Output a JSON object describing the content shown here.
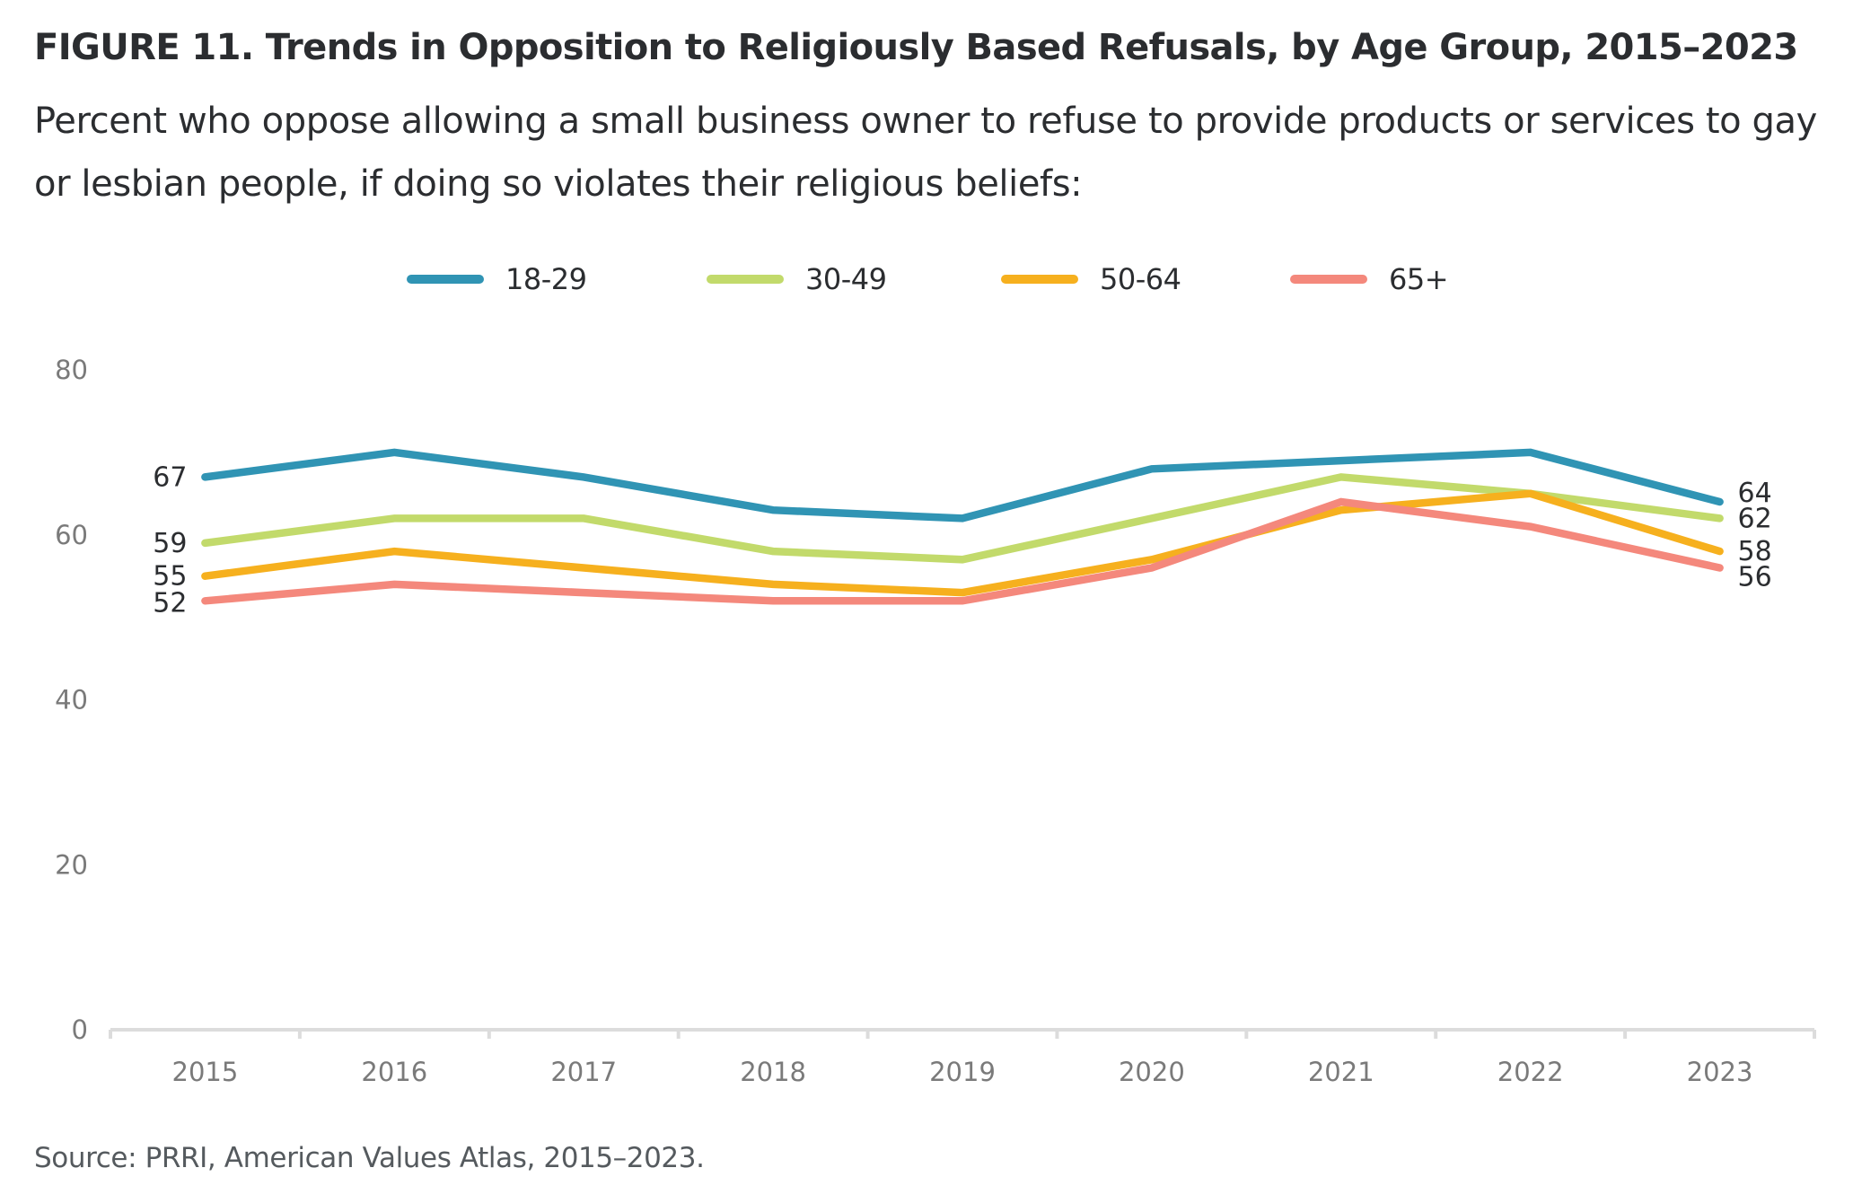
{
  "header": {
    "title": "FIGURE 11. Trends in Opposition to Religiously Based Refusals, by Age Group, 2015–2023",
    "subtitle": "Percent who oppose allowing a small business owner to refuse to provide products or services to gay or lesbian people, if doing so violates their religious beliefs:"
  },
  "footer": {
    "source": "Source: PRRI, American Values Atlas, 2015–2023."
  },
  "chart_data": {
    "type": "line",
    "title": "FIGURE 11. Trends in Opposition to Religiously Based Refusals, by Age Group, 2015–2023",
    "subtitle": "Percent who oppose allowing a small business owner to refuse to provide products or services to gay or lesbian people, if doing so violates their religious beliefs:",
    "xlabel": "",
    "ylabel": "",
    "categories": [
      "2015",
      "2016",
      "2017",
      "2018",
      "2019",
      "2020",
      "2021",
      "2022",
      "2023"
    ],
    "ylim": [
      0,
      80
    ],
    "yticks": [
      0,
      20,
      40,
      60,
      80
    ],
    "grid": false,
    "legend_position": "top-center",
    "series": [
      {
        "name": "18-29",
        "color": "#3094b4",
        "values": [
          67,
          70,
          67,
          63,
          62,
          68,
          69,
          70,
          64
        ]
      },
      {
        "name": "30-49",
        "color": "#c2da6b",
        "values": [
          59,
          62,
          62,
          58,
          57,
          62,
          67,
          65,
          62
        ]
      },
      {
        "name": "50-64",
        "color": "#f6b01e",
        "values": [
          55,
          58,
          56,
          54,
          53,
          57,
          63,
          65,
          58
        ]
      },
      {
        "name": "65+",
        "color": "#f4887c",
        "values": [
          52,
          54,
          53,
          52,
          52,
          56,
          64,
          61,
          56
        ]
      }
    ],
    "annotations": {
      "start_labels": [
        "67",
        "59",
        "55",
        "52"
      ],
      "end_labels": [
        "64",
        "62",
        "58",
        "56"
      ]
    },
    "source": "Source: PRRI, American Values Atlas, 2015–2023."
  }
}
